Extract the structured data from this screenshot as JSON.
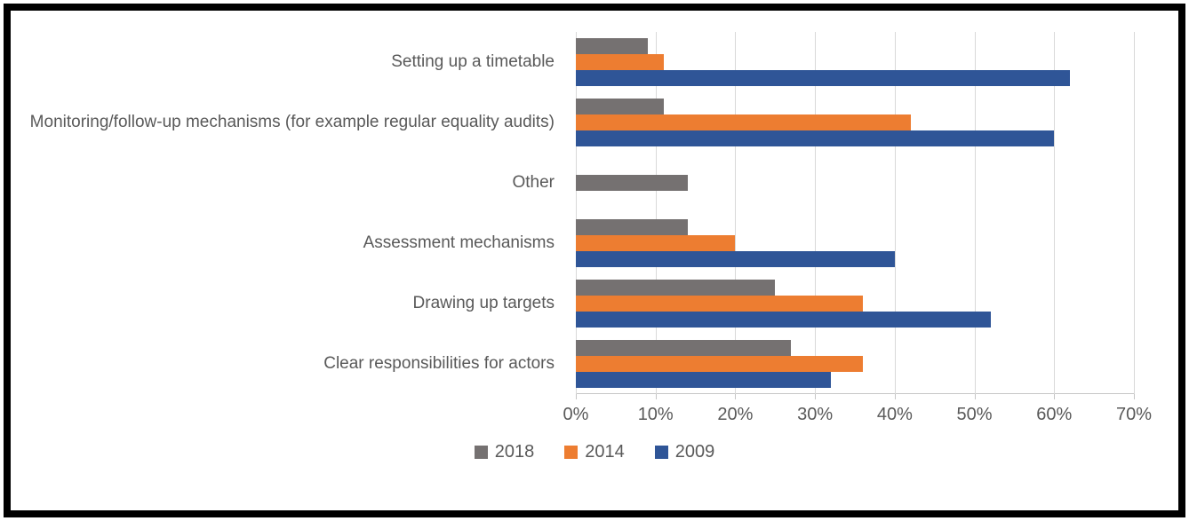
{
  "chart_data": {
    "type": "bar",
    "orientation": "horizontal",
    "title": "",
    "xlabel": "",
    "ylabel": "",
    "categories": [
      "Setting up a timetable",
      "Monitoring/follow-up mechanisms (for example regular equality audits)",
      "Other",
      "Assessment mechanisms",
      "Drawing up targets",
      "Clear responsibilities for actors"
    ],
    "series": [
      {
        "name": "2018",
        "color": "#757171",
        "values": [
          9,
          11,
          14,
          14,
          25,
          27
        ]
      },
      {
        "name": "2014",
        "color": "#ED7D31",
        "values": [
          11,
          42,
          0,
          20,
          36,
          36
        ]
      },
      {
        "name": "2009",
        "color": "#2F5597",
        "values": [
          62,
          60,
          0,
          40,
          52,
          32
        ]
      }
    ],
    "xlim": [
      0,
      70
    ],
    "x_ticks": [
      "0%",
      "10%",
      "20%",
      "30%",
      "40%",
      "50%",
      "60%",
      "70%"
    ],
    "grid": true,
    "legend_position": "bottom"
  },
  "colors": {
    "gridline": "#D9D9D9",
    "axis": "#C6C6C6",
    "text": "#595959",
    "frame_border": "#000000"
  }
}
